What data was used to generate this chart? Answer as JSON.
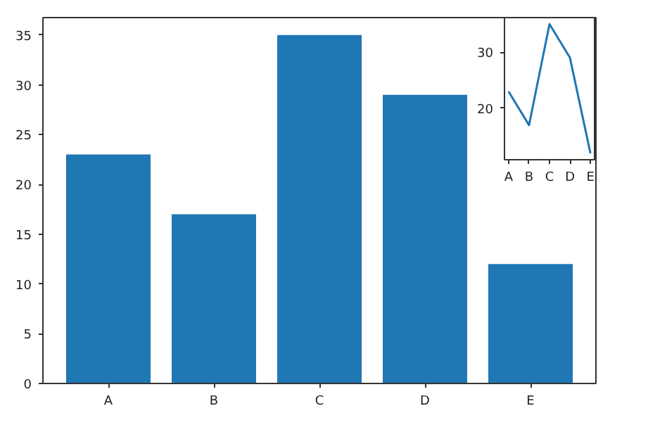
{
  "chart_data": [
    {
      "type": "bar",
      "categories": [
        "A",
        "B",
        "C",
        "D",
        "E"
      ],
      "values": [
        23,
        17,
        35,
        29,
        12
      ],
      "color": "#1f77b4",
      "ylim": [
        0,
        36.75
      ],
      "yticks": [
        0,
        5,
        10,
        15,
        20,
        25,
        30,
        35
      ],
      "grid": false
    },
    {
      "type": "line",
      "categories": [
        "A",
        "B",
        "C",
        "D",
        "E"
      ],
      "values": [
        23,
        17,
        35,
        29,
        12
      ],
      "color": "#1f77b4",
      "ylim": [
        10.85,
        36.15
      ],
      "yticks": [
        20,
        30
      ],
      "grid": false
    }
  ]
}
